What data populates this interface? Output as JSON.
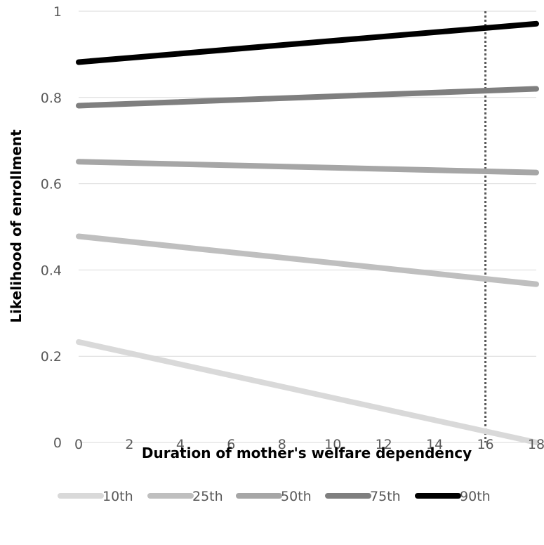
{
  "chart_data": {
    "type": "line",
    "xlabel": "Duration of mother's welfare dependency",
    "ylabel": "Likelihood of enrollment",
    "xlim": [
      0,
      18
    ],
    "ylim": [
      0,
      1
    ],
    "x_ticks": [
      0,
      2,
      4,
      6,
      8,
      10,
      12,
      14,
      16,
      18
    ],
    "y_ticks": [
      0,
      0.2,
      0.4,
      0.6,
      0.8,
      1
    ],
    "y_tick_labels": [
      "0",
      "0.2",
      "0.4",
      "0.6",
      "0.8",
      "1"
    ],
    "grid": "horizontal",
    "legend_position": "bottom",
    "reference_line": {
      "x": 16,
      "style": "dotted",
      "color": "#595959"
    },
    "series": [
      {
        "name": "10th",
        "color": "#d9d9d9",
        "x": [
          0,
          18
        ],
        "values": [
          0.233,
          0.0
        ]
      },
      {
        "name": "25th",
        "color": "#bfbfbf",
        "x": [
          0,
          18
        ],
        "values": [
          0.478,
          0.367
        ]
      },
      {
        "name": "50th",
        "color": "#a6a6a6",
        "x": [
          0,
          18
        ],
        "values": [
          0.651,
          0.626
        ]
      },
      {
        "name": "75th",
        "color": "#7f7f7f",
        "x": [
          0,
          18
        ],
        "values": [
          0.781,
          0.82
        ]
      },
      {
        "name": "90th",
        "color": "#000000",
        "x": [
          0,
          18
        ],
        "values": [
          0.882,
          0.971
        ]
      }
    ]
  }
}
